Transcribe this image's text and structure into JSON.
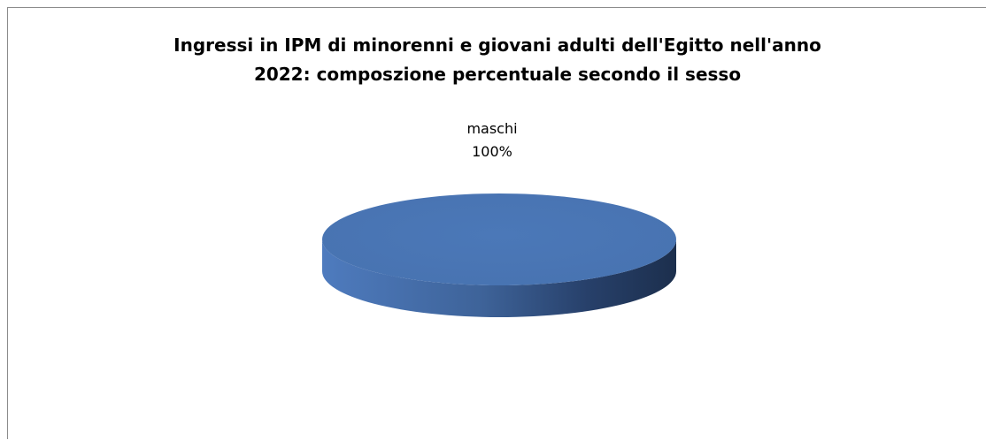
{
  "chart_data": {
    "type": "pie",
    "title": "Ingressi in IPM di minorenni e giovani adulti dell'Egitto nell'anno\n2022: composzione percentuale secondo il sesso",
    "categories": [
      "maschi"
    ],
    "values": [
      100
    ],
    "data_labels": [
      {
        "category": "maschi",
        "percent": "100%"
      }
    ],
    "legend": "none",
    "colors": {
      "slice": "#4A76B6",
      "side_light": "#4E7BBE",
      "side_dark": "#1C2F4D"
    }
  }
}
